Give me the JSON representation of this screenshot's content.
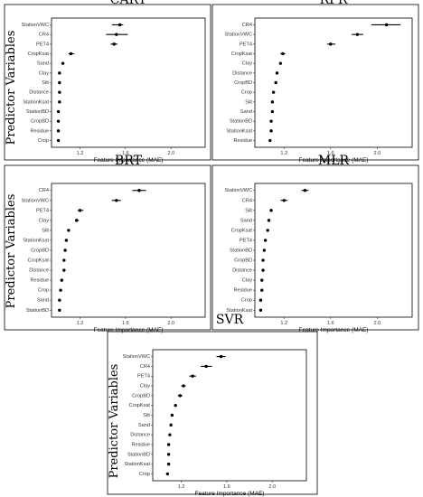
{
  "y_axis_label": "Predictor Variables",
  "chart_data": [
    {
      "title": "CART",
      "type": "scatter",
      "xlabel": "Feature Importance (MAE)",
      "xticks": [
        "1.2",
        "1.6",
        "2.0"
      ],
      "xlim": [
        0.95,
        2.3
      ],
      "categories": [
        "StationVWC",
        "CR4",
        "PET4",
        "CropKsat",
        "Sand",
        "Clay",
        "Silt",
        "Distance",
        "StationKsat",
        "StationBD",
        "CropBD",
        "Residue",
        "Crop"
      ],
      "values": [
        1.55,
        1.52,
        1.5,
        1.12,
        1.05,
        1.02,
        1.02,
        1.02,
        1.02,
        1.01,
        1.01,
        1.01,
        1.01
      ],
      "err_low": [
        1.48,
        1.43,
        1.47,
        1.1,
        1.05,
        1.02,
        1.02,
        1.02,
        1.02,
        1.01,
        1.01,
        1.01,
        1.01
      ],
      "err_high": [
        1.58,
        1.62,
        1.53,
        1.15,
        1.05,
        1.02,
        1.02,
        1.02,
        1.02,
        1.01,
        1.01,
        1.01,
        1.01
      ]
    },
    {
      "title": "RFR",
      "type": "scatter",
      "xlabel": "Feature Importance (MAE)",
      "xticks": [
        "1.2",
        "1.6",
        "2.0"
      ],
      "xlim": [
        0.95,
        2.3
      ],
      "categories": [
        "CR4",
        "StationVWC",
        "PET4",
        "CropKsat",
        "Clay",
        "Distance",
        "CropBD",
        "Crop",
        "Silt",
        "Sand",
        "StationBD",
        "StationKsat",
        "Residue"
      ],
      "values": [
        2.08,
        1.83,
        1.6,
        1.19,
        1.17,
        1.14,
        1.13,
        1.11,
        1.1,
        1.1,
        1.09,
        1.09,
        1.08
      ],
      "err_low": [
        1.95,
        1.78,
        1.57,
        1.17,
        1.16,
        1.14,
        1.13,
        1.11,
        1.1,
        1.1,
        1.09,
        1.09,
        1.08
      ],
      "err_high": [
        2.2,
        1.88,
        1.64,
        1.21,
        1.18,
        1.14,
        1.13,
        1.11,
        1.1,
        1.1,
        1.09,
        1.09,
        1.08
      ]
    },
    {
      "title": "BRT",
      "type": "scatter",
      "xlabel": "Feature Importance (MAE)",
      "xticks": [
        "1.2",
        "1.6",
        "2.0"
      ],
      "xlim": [
        0.95,
        2.3
      ],
      "categories": [
        "CR4",
        "StationVWC",
        "PET4",
        "Clay",
        "Silt",
        "StationKsat",
        "CropBD",
        "CropKsat",
        "Distance",
        "Residue",
        "Crop",
        "Sand",
        "StationBD"
      ],
      "values": [
        1.72,
        1.52,
        1.2,
        1.17,
        1.1,
        1.08,
        1.07,
        1.06,
        1.06,
        1.04,
        1.03,
        1.02,
        1.02
      ],
      "err_low": [
        1.66,
        1.48,
        1.18,
        1.16,
        1.1,
        1.08,
        1.07,
        1.06,
        1.06,
        1.04,
        1.03,
        1.02,
        1.02
      ],
      "err_high": [
        1.78,
        1.56,
        1.23,
        1.19,
        1.1,
        1.08,
        1.07,
        1.06,
        1.06,
        1.04,
        1.03,
        1.02,
        1.02
      ]
    },
    {
      "title": "MLR",
      "type": "scatter",
      "xlabel": "Feature Importance (MAE)",
      "xticks": [
        "1.2",
        "1.6",
        "2.0"
      ],
      "xlim": [
        0.95,
        2.3
      ],
      "categories": [
        "StationVWC",
        "CR4",
        "Silt",
        "Sand",
        "CropKsat",
        "PET4",
        "StationBD",
        "CropBD",
        "Distance",
        "Clay",
        "Residue",
        "Crop",
        "StationKsat"
      ],
      "values": [
        1.38,
        1.2,
        1.09,
        1.07,
        1.06,
        1.04,
        1.03,
        1.02,
        1.02,
        1.01,
        1.01,
        1.0,
        1.0
      ],
      "err_low": [
        1.35,
        1.17,
        1.09,
        1.07,
        1.06,
        1.04,
        1.03,
        1.02,
        1.02,
        1.01,
        1.01,
        1.0,
        1.0
      ],
      "err_high": [
        1.41,
        1.23,
        1.09,
        1.07,
        1.06,
        1.04,
        1.03,
        1.02,
        1.02,
        1.01,
        1.01,
        1.0,
        1.0
      ]
    },
    {
      "title": "SVR",
      "type": "scatter",
      "xlabel": "Feature Importance (MAE)",
      "xticks": [
        "1.2",
        "1.6",
        "2.0"
      ],
      "xlim": [
        0.95,
        2.3
      ],
      "categories": [
        "StationVWC",
        "CR4",
        "PET4",
        "Clay",
        "CropBD",
        "CropKsat",
        "Silt",
        "Sand",
        "Distance",
        "Residue",
        "StationBD",
        "StationKsat",
        "Crop"
      ],
      "values": [
        1.55,
        1.42,
        1.3,
        1.22,
        1.19,
        1.15,
        1.12,
        1.11,
        1.1,
        1.09,
        1.09,
        1.09,
        1.08
      ],
      "err_low": [
        1.51,
        1.37,
        1.27,
        1.2,
        1.17,
        1.15,
        1.12,
        1.11,
        1.1,
        1.09,
        1.09,
        1.09,
        1.08
      ],
      "err_high": [
        1.59,
        1.47,
        1.33,
        1.24,
        1.21,
        1.15,
        1.12,
        1.11,
        1.1,
        1.09,
        1.09,
        1.09,
        1.08
      ]
    }
  ]
}
